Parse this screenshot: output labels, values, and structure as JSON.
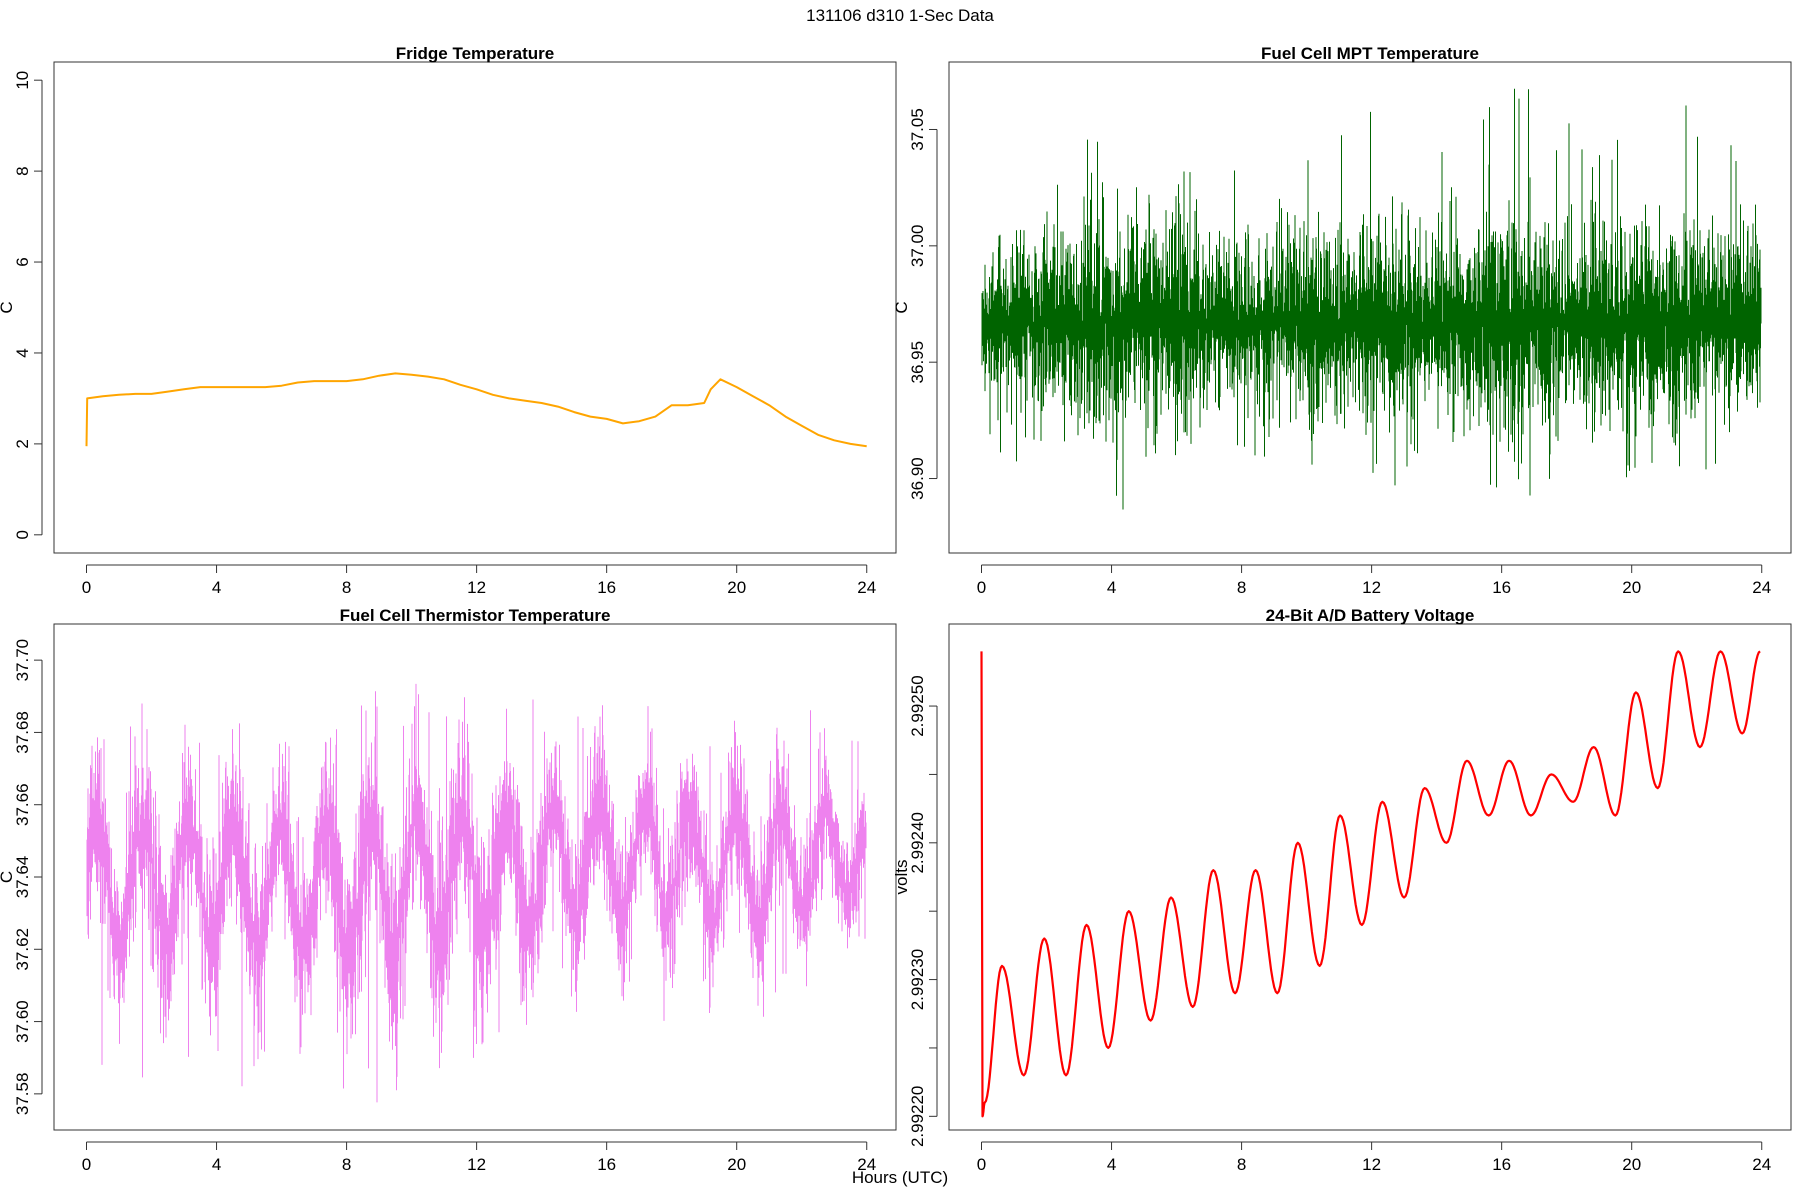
{
  "figure": {
    "title": "131106   d310   1-Sec Data",
    "xlabel": "Hours (UTC)"
  },
  "chart_data": [
    {
      "type": "line",
      "title": "Fridge Temperature",
      "xlabel": "",
      "ylabel": "C",
      "xlim": [
        -1,
        24.9
      ],
      "ylim": [
        -0.4,
        10.4
      ],
      "xticks": [
        0,
        4,
        8,
        12,
        16,
        20,
        24
      ],
      "yticks": [
        0,
        2,
        4,
        6,
        8,
        10
      ],
      "yticklabels": [
        "0",
        "2",
        "4",
        "6",
        "8",
        "10"
      ],
      "color": "#FFA500",
      "series": [
        {
          "x": [
            0,
            0.02,
            0.5,
            1,
            1.5,
            2,
            2.5,
            3,
            3.5,
            4,
            4.5,
            5,
            5.5,
            6,
            6.5,
            7,
            7.5,
            8,
            8.5,
            9,
            9.5,
            10,
            10.5,
            11,
            11.5,
            12,
            12.5,
            13,
            13.5,
            14,
            14.5,
            15,
            15.5,
            16,
            16.5,
            17,
            17.5,
            18,
            18.5,
            19,
            19.2,
            19.5,
            20,
            20.5,
            21,
            21.5,
            22,
            22.5,
            23,
            23.5,
            24
          ],
          "y": [
            1.95,
            3.0,
            3.05,
            3.08,
            3.1,
            3.1,
            3.15,
            3.2,
            3.25,
            3.25,
            3.25,
            3.25,
            3.25,
            3.28,
            3.35,
            3.38,
            3.38,
            3.38,
            3.42,
            3.5,
            3.55,
            3.52,
            3.48,
            3.42,
            3.3,
            3.2,
            3.08,
            3.0,
            2.95,
            2.9,
            2.82,
            2.7,
            2.6,
            2.55,
            2.45,
            2.5,
            2.6,
            2.85,
            2.85,
            2.9,
            3.2,
            3.42,
            3.25,
            3.05,
            2.85,
            2.6,
            2.4,
            2.2,
            2.08,
            2.0,
            1.95
          ]
        }
      ]
    },
    {
      "type": "line",
      "title": "Fuel Cell MPT Temperature",
      "xlabel": "",
      "ylabel": "C",
      "xlim": [
        -1,
        24.9
      ],
      "ylim": [
        36.868,
        37.079
      ],
      "xticks": [
        0,
        4,
        8,
        12,
        16,
        20,
        24
      ],
      "yticks": [
        36.9,
        36.95,
        37.0,
        37.05
      ],
      "yticklabels": [
        "36.90",
        "36.95",
        "37.00",
        "37.05"
      ],
      "color": "#006400",
      "series": [
        {
          "x": [
            0,
            2,
            4,
            6,
            8,
            10,
            12,
            14,
            16,
            18,
            20,
            22,
            24
          ],
          "y_center": [
            36.967,
            36.967,
            36.967,
            36.967,
            36.967,
            36.967,
            36.967,
            36.967,
            36.967,
            36.967,
            36.967,
            36.967,
            36.967
          ],
          "y_min": [
            36.91,
            36.905,
            36.869,
            36.878,
            36.9,
            36.9,
            36.895,
            36.9,
            36.885,
            36.895,
            36.9,
            36.895,
            36.905
          ],
          "y_max": [
            37.04,
            37.045,
            37.055,
            37.05,
            37.045,
            37.05,
            37.068,
            37.06,
            37.078,
            37.055,
            37.06,
            37.065,
            37.05
          ]
        }
      ]
    },
    {
      "type": "line",
      "title": "Fuel Cell Thermistor Temperature",
      "xlabel": "",
      "ylabel": "C",
      "xlim": [
        -1,
        24.9
      ],
      "ylim": [
        37.57,
        37.71
      ],
      "xticks": [
        0,
        4,
        8,
        12,
        16,
        20,
        24
      ],
      "yticks": [
        37.58,
        37.6,
        37.62,
        37.64,
        37.66,
        37.68,
        37.7
      ],
      "yticklabels": [
        "37.58",
        "37.60",
        "37.62",
        "37.64",
        "37.66",
        "37.68",
        "37.70"
      ],
      "color": "#EE82EE",
      "series": [
        {
          "x": [
            0,
            2,
            4,
            6,
            8,
            10,
            12,
            14,
            16,
            18,
            20,
            22,
            24
          ],
          "y_center": [
            37.638,
            37.638,
            37.638,
            37.637,
            37.637,
            37.638,
            37.641,
            37.642,
            37.645,
            37.644,
            37.642,
            37.645,
            37.647
          ],
          "y_min": [
            37.58,
            37.585,
            37.58,
            37.585,
            37.575,
            37.576,
            37.59,
            37.595,
            37.6,
            37.6,
            37.595,
            37.61,
            37.62
          ],
          "y_max": [
            37.69,
            37.69,
            37.69,
            37.69,
            37.69,
            37.695,
            37.7,
            37.69,
            37.695,
            37.685,
            37.69,
            37.7,
            37.68
          ]
        }
      ]
    },
    {
      "type": "line",
      "title": "24-Bit A/D Battery Voltage",
      "xlabel": "",
      "ylabel": "volts",
      "xlim": [
        -1,
        24.9
      ],
      "ylim": [
        2.99219,
        2.99256
      ],
      "xticks": [
        0,
        4,
        8,
        12,
        16,
        20,
        24
      ],
      "yticks": [
        2.9922,
        2.99225,
        2.9923,
        2.99235,
        2.9924,
        2.99245,
        2.9925
      ],
      "yticklabels": [
        "2.99220",
        "",
        "2.99230",
        "",
        "2.99240",
        "",
        "2.99250"
      ],
      "color": "#FF0000",
      "series": [
        {
          "x": [
            0,
            0.03,
            0.1,
            0.63,
            1.3,
            1.93,
            2.6,
            3.23,
            3.9,
            4.53,
            5.2,
            5.83,
            6.5,
            7.13,
            7.8,
            8.43,
            9.1,
            9.73,
            10.4,
            11.03,
            11.7,
            12.33,
            13.0,
            13.63,
            14.3,
            14.93,
            15.6,
            16.23,
            16.9,
            17.53,
            18.2,
            18.83,
            19.5,
            20.13,
            20.8,
            21.43,
            22.1,
            22.73,
            23.4,
            23.95
          ],
          "y": [
            2.99254,
            2.9922,
            2.99221,
            2.99231,
            2.99223,
            2.99233,
            2.99223,
            2.99234,
            2.99225,
            2.99235,
            2.99227,
            2.99236,
            2.99228,
            2.99238,
            2.99229,
            2.99238,
            2.99229,
            2.9924,
            2.99231,
            2.99242,
            2.99234,
            2.99243,
            2.99236,
            2.99244,
            2.9924,
            2.99246,
            2.99242,
            2.99246,
            2.99242,
            2.99245,
            2.99243,
            2.99247,
            2.99242,
            2.99251,
            2.99244,
            2.99254,
            2.99247,
            2.99254,
            2.99248,
            2.99254
          ]
        }
      ]
    }
  ]
}
